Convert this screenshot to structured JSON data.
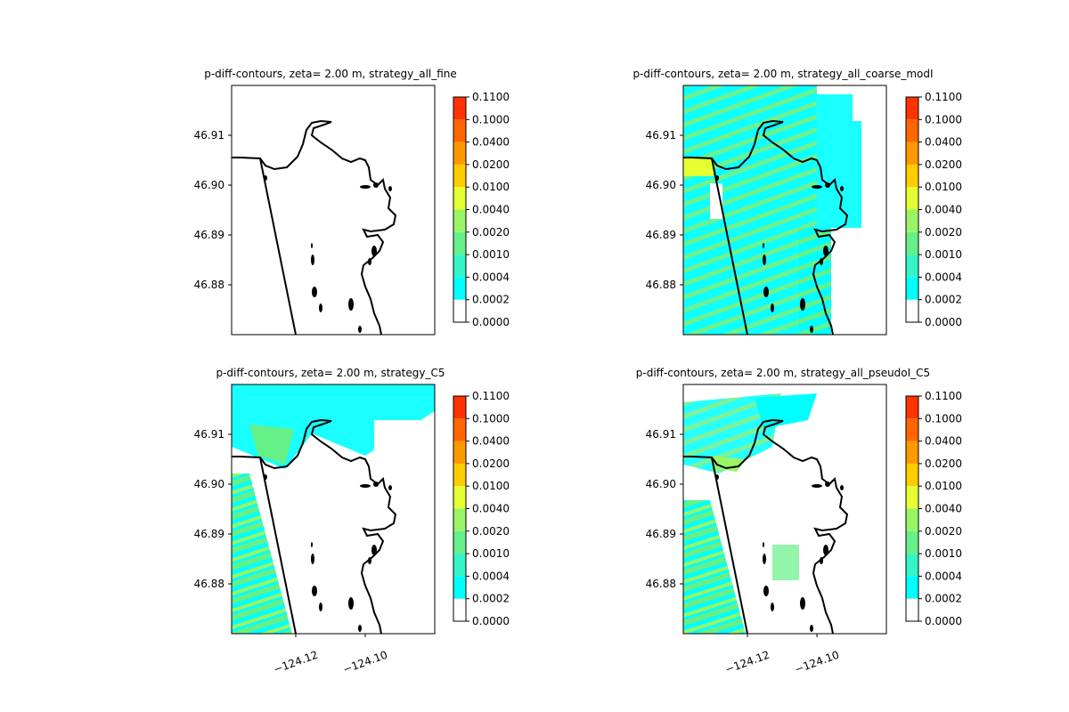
{
  "figure": {
    "background": "#ffffff",
    "coast_color": "#000000"
  },
  "colorbar": {
    "levels": [
      "0.0000",
      "0.0002",
      "0.0004",
      "0.0010",
      "0.0020",
      "0.0040",
      "0.0100",
      "0.0200",
      "0.0400",
      "0.1000",
      "0.1100"
    ],
    "colors": [
      "#ffffff",
      "#00ffff",
      "#33f5c8",
      "#66f088",
      "#99f566",
      "#e6ff33",
      "#ffcc00",
      "#ff9900",
      "#ff6600",
      "#ff3300",
      "#ff0000"
    ]
  },
  "chart_data": [
    {
      "type": "contour",
      "title": "p-diff-contours, zeta= 2.00 m, strategy_all_fine",
      "yticks": [
        "46.91",
        "46.90",
        "46.89",
        "46.88"
      ],
      "xticks": [],
      "field": "none"
    },
    {
      "type": "contour",
      "title": "p-diff-contours, zeta= 2.00 m, strategy_all_coarse_modI",
      "yticks": [
        "46.91",
        "46.90",
        "46.89",
        "46.88"
      ],
      "xticks": [],
      "field": "broad"
    },
    {
      "type": "contour",
      "title": "p-diff-contours, zeta= 2.00 m, strategy_C5",
      "yticks": [
        "46.91",
        "46.90",
        "46.89",
        "46.88"
      ],
      "xticks": [
        "−124.12",
        "−124.10"
      ],
      "field": "bands"
    },
    {
      "type": "contour",
      "title": "p-diff-contours, zeta= 2.00 m, strategy_all_pseudoI_C5",
      "yticks": [
        "46.91",
        "46.90",
        "46.89",
        "46.88"
      ],
      "xticks": [
        "−124.12",
        "−124.10"
      ],
      "field": "sparse"
    }
  ]
}
